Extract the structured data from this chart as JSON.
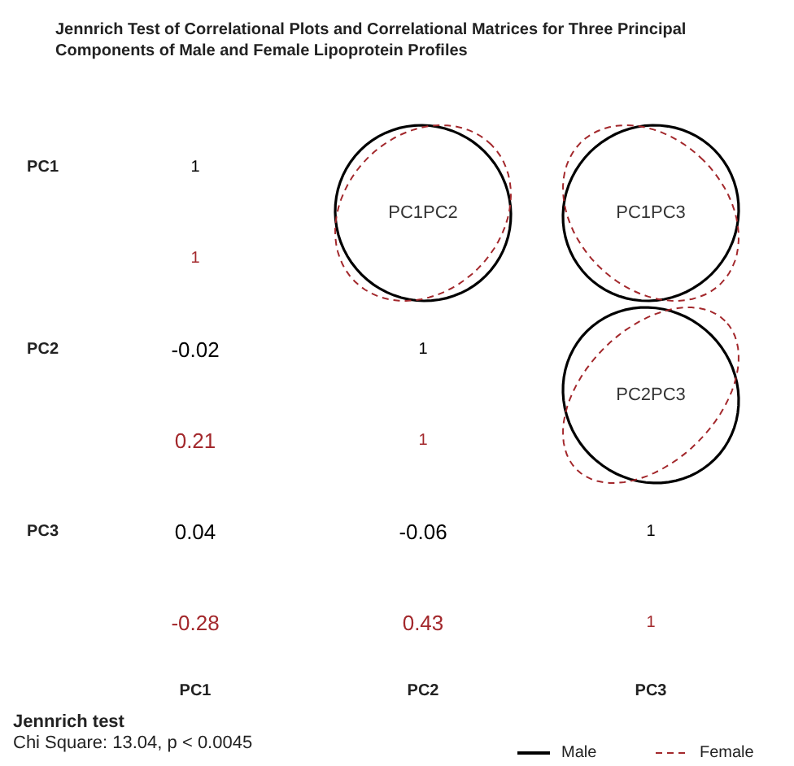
{
  "chart_data": {
    "type": "heatmap",
    "title": "Jennrich Test of Correlational Plots and Correlational Matrices for Three Principal Components of Male and Female Lipoprotein Profiles",
    "categories": [
      "PC1",
      "PC2",
      "PC3"
    ],
    "y_categories": [
      "PC1",
      null,
      "PC2",
      null,
      "PC3",
      null
    ],
    "cells": [
      [
        1,
        null,
        null
      ],
      [
        1,
        null,
        null
      ],
      [
        -0.02,
        1,
        null
      ],
      [
        0.21,
        1,
        null
      ],
      [
        0.04,
        -0.06,
        1
      ],
      [
        -0.28,
        0.43,
        1
      ]
    ],
    "cell_labels": [
      [
        "1",
        "PC1PC2",
        "PC1PC3"
      ],
      [
        "1",
        null,
        null
      ],
      [
        "-0.02",
        "1",
        "PC2PC3"
      ],
      [
        "0.21",
        "1",
        null
      ],
      [
        "0.04",
        "-0.06",
        "1"
      ],
      [
        "-0.28",
        "0.43",
        "1"
      ]
    ],
    "data_labels": true,
    "annotations": [
      "Jennrich test",
      "Chi Square: 13.04, p < 0.0045",
      "Male",
      "Female"
    ]
  }
}
